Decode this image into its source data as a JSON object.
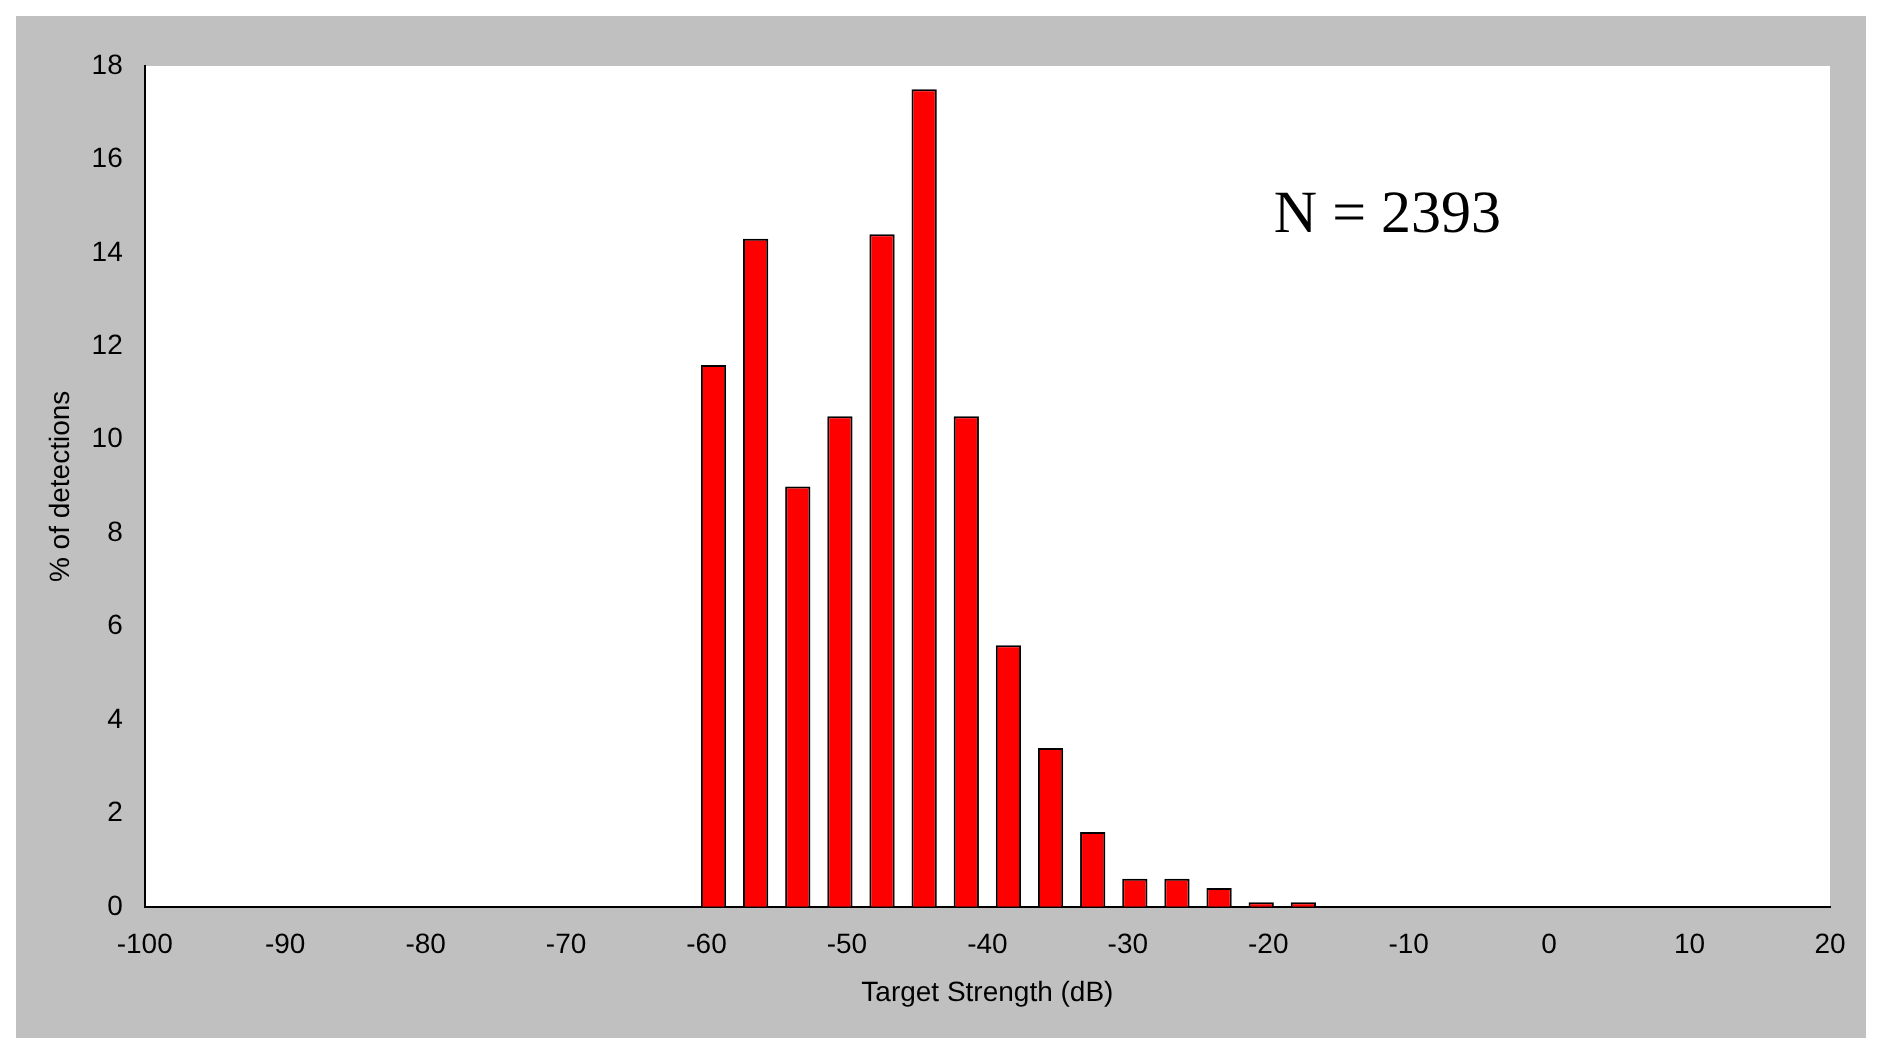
{
  "chart_data": {
    "type": "histogram",
    "xlabel": "Target Strength (dB)",
    "ylabel": "% of detections",
    "annotations": [
      "N = 2393"
    ],
    "bins": [
      -100,
      -97,
      -94,
      -91,
      -88,
      -85,
      -82,
      -79,
      -76,
      -73,
      -70,
      -67,
      -64,
      -61,
      -58,
      -55,
      -52,
      -49,
      -46,
      -43,
      -40,
      -37,
      -34,
      -31,
      -28,
      -25,
      -22,
      -19,
      -16,
      -13,
      -10,
      -7,
      -4,
      -1,
      2,
      5,
      8,
      11,
      14,
      17,
      20
    ],
    "values": [
      0,
      0,
      0,
      0,
      0,
      0,
      0,
      0,
      0,
      0,
      0,
      0,
      0,
      11.6,
      14.3,
      9.0,
      10.5,
      14.4,
      17.5,
      10.5,
      5.6,
      3.4,
      1.6,
      0.6,
      0.6,
      0.4,
      0.1,
      0.1,
      0,
      0,
      0,
      0,
      0,
      0,
      0,
      0,
      0,
      0,
      0,
      0
    ],
    "color": "#ff0000",
    "xlim": [
      -100,
      20
    ],
    "xticks": [
      -100,
      -90,
      -80,
      -70,
      -60,
      -50,
      -40,
      -30,
      -20,
      -10,
      0,
      10,
      20
    ],
    "ylim": [
      0,
      18
    ],
    "yticks": [
      0,
      2,
      4,
      6,
      8,
      10,
      12,
      14,
      16,
      18
    ],
    "grid": false,
    "legend": false
  }
}
